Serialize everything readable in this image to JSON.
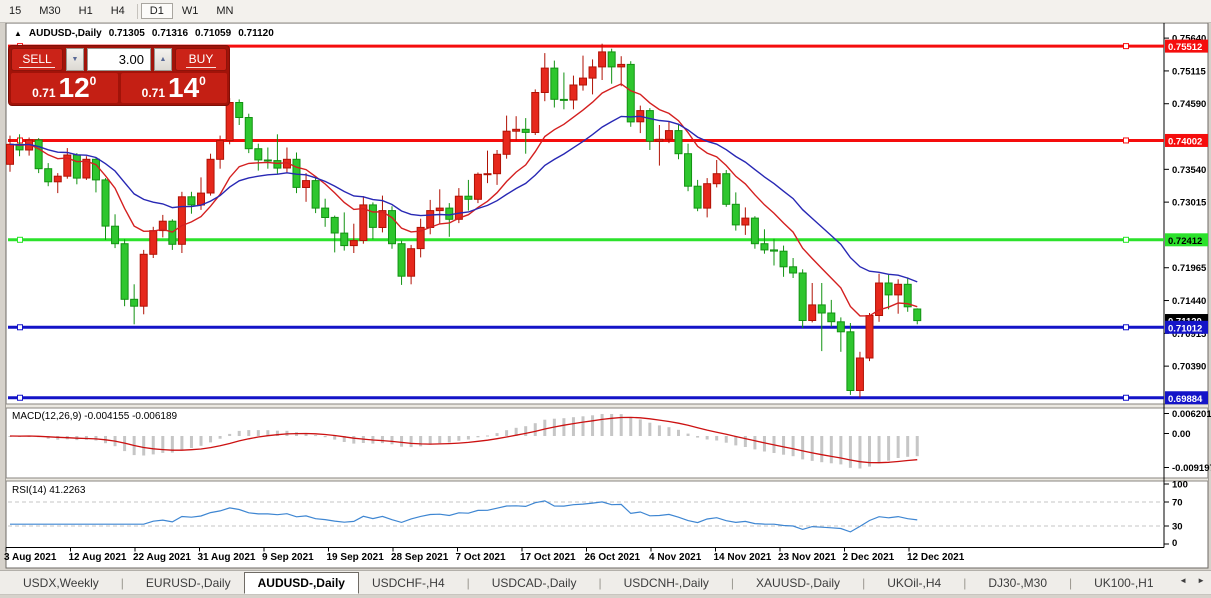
{
  "toolbar": {
    "items": [
      "15",
      "M30",
      "H1",
      "H4",
      "D1",
      "W1",
      "MN"
    ],
    "active": "D1"
  },
  "chart_header": {
    "marker": "▲",
    "symbol": "AUDUSD-,Daily",
    "open": "0.71305",
    "high": "0.71316",
    "low": "0.71059",
    "close": "0.71120"
  },
  "trade_panel": {
    "sell_label": "SELL",
    "buy_label": "BUY",
    "volume": "3.00",
    "decrement_icon": "▼",
    "increment_icon": "▲",
    "sell_price": {
      "prefix": "0.71",
      "big": "12",
      "pips": "0"
    },
    "buy_price": {
      "prefix": "0.71",
      "big": "14",
      "pips": "0"
    },
    "colors": {
      "backdrop": "#a11309",
      "button": "#cb2318"
    }
  },
  "current_price": {
    "label": "0.71120",
    "bg": "#000000",
    "text_color": "#ffffff"
  },
  "date_axis": {
    "labels": [
      "3 Aug 2021",
      "12 Aug 2021",
      "22 Aug 2021",
      "31 Aug 2021",
      "9 Sep 2021",
      "19 Sep 2021",
      "28 Sep 2021",
      "7 Oct 2021",
      "17 Oct 2021",
      "26 Oct 2021",
      "4 Nov 2021",
      "14 Nov 2021",
      "23 Nov 2021",
      "2 Dec 2021",
      "12 Dec 2021"
    ]
  },
  "tabs": {
    "items": [
      "USDX,Weekly",
      "EURUSD-,Daily",
      "AUDUSD-,Daily",
      "USDCHF-,H4",
      "USDCAD-,Daily",
      "USDCNH-,Daily",
      "XAUUSD-,Daily",
      "UKOil-,H4",
      "DJ30-,M30",
      "UK100-,H1"
    ],
    "active_index": 2,
    "scroll_left_icon": "◄",
    "scroll_right_icon": "►"
  },
  "chart_data": [
    {
      "type": "candlestick",
      "title": "AUDUSD-,Daily",
      "grid": false,
      "ylim": [
        0.698,
        0.7585
      ],
      "y_ticks": [
        "0.75640",
        "0.75115",
        "0.74590",
        "0.73540",
        "0.73015",
        "0.71965",
        "0.71440",
        "0.70915",
        "0.70390"
      ],
      "bull_color": "#e6281c",
      "bull_stroke": "#b01205",
      "bear_color": "#2ec62e",
      "bear_stroke": "#129212",
      "overlays": [
        {
          "name": "ma-fast",
          "period": 10,
          "color": "#d42020"
        },
        {
          "name": "ma-slow",
          "period": 21,
          "color": "#2828b4"
        }
      ],
      "levels": [
        {
          "price": 0.75512,
          "label": "0.75512",
          "color": "#f50d0d",
          "text_color": "#ffffff"
        },
        {
          "price": 0.74002,
          "label": "0.74002",
          "color": "#f50d0d",
          "text_color": "#ffffff"
        },
        {
          "price": 0.72412,
          "label": "0.72412",
          "color": "#2be22b",
          "text_color": "#000000"
        },
        {
          "price": 0.71012,
          "label": "0.71012",
          "color": "#1414c8",
          "text_color": "#ffffff"
        },
        {
          "price": 0.69884,
          "label": "0.69884",
          "color": "#1414c8",
          "text_color": "#ffffff"
        }
      ],
      "x": [
        "2021-08-03",
        "2021-08-04",
        "2021-08-05",
        "2021-08-06",
        "2021-08-09",
        "2021-08-10",
        "2021-08-11",
        "2021-08-12",
        "2021-08-13",
        "2021-08-16",
        "2021-08-17",
        "2021-08-18",
        "2021-08-19",
        "2021-08-20",
        "2021-08-23",
        "2021-08-24",
        "2021-08-25",
        "2021-08-26",
        "2021-08-27",
        "2021-08-30",
        "2021-08-31",
        "2021-09-01",
        "2021-09-02",
        "2021-09-03",
        "2021-09-06",
        "2021-09-07",
        "2021-09-08",
        "2021-09-09",
        "2021-09-10",
        "2021-09-13",
        "2021-09-14",
        "2021-09-15",
        "2021-09-16",
        "2021-09-17",
        "2021-09-20",
        "2021-09-21",
        "2021-09-22",
        "2021-09-23",
        "2021-09-24",
        "2021-09-27",
        "2021-09-28",
        "2021-09-29",
        "2021-09-30",
        "2021-10-01",
        "2021-10-04",
        "2021-10-05",
        "2021-10-06",
        "2021-10-07",
        "2021-10-08",
        "2021-10-11",
        "2021-10-12",
        "2021-10-13",
        "2021-10-14",
        "2021-10-15",
        "2021-10-18",
        "2021-10-19",
        "2021-10-20",
        "2021-10-21",
        "2021-10-22",
        "2021-10-25",
        "2021-10-26",
        "2021-10-27",
        "2021-10-28",
        "2021-10-29",
        "2021-11-01",
        "2021-11-02",
        "2021-11-03",
        "2021-11-04",
        "2021-11-05",
        "2021-11-08",
        "2021-11-09",
        "2021-11-10",
        "2021-11-11",
        "2021-11-12",
        "2021-11-15",
        "2021-11-16",
        "2021-11-17",
        "2021-11-18",
        "2021-11-19",
        "2021-11-22",
        "2021-11-23",
        "2021-11-24",
        "2021-11-25",
        "2021-11-26",
        "2021-11-29",
        "2021-11-30",
        "2021-12-01",
        "2021-12-02",
        "2021-12-03",
        "2021-12-06",
        "2021-12-07",
        "2021-12-08",
        "2021-12-09",
        "2021-12-10",
        "2021-12-13",
        "2021-12-14"
      ],
      "ohlc": [
        [
          0.7362,
          0.7408,
          0.735,
          0.7394
        ],
        [
          0.7394,
          0.741,
          0.7375,
          0.7385
        ],
        [
          0.7385,
          0.7405,
          0.7376,
          0.7401
        ],
        [
          0.7401,
          0.7404,
          0.7348,
          0.7355
        ],
        [
          0.7355,
          0.7364,
          0.7327,
          0.7334
        ],
        [
          0.7334,
          0.7348,
          0.7316,
          0.7343
        ],
        [
          0.7343,
          0.7388,
          0.7339,
          0.7377
        ],
        [
          0.7377,
          0.738,
          0.733,
          0.734
        ],
        [
          0.734,
          0.7375,
          0.7337,
          0.737
        ],
        [
          0.737,
          0.7372,
          0.7317,
          0.7337
        ],
        [
          0.7337,
          0.734,
          0.7241,
          0.7263
        ],
        [
          0.7263,
          0.7282,
          0.7228,
          0.7235
        ],
        [
          0.7235,
          0.7242,
          0.7135,
          0.7146
        ],
        [
          0.7146,
          0.717,
          0.7106,
          0.7135
        ],
        [
          0.7135,
          0.7225,
          0.7122,
          0.7218
        ],
        [
          0.7218,
          0.7262,
          0.7212,
          0.7256
        ],
        [
          0.7256,
          0.7281,
          0.7245,
          0.7271
        ],
        [
          0.7271,
          0.7274,
          0.7225,
          0.7234
        ],
        [
          0.7234,
          0.7318,
          0.722,
          0.731
        ],
        [
          0.731,
          0.7318,
          0.7283,
          0.7297
        ],
        [
          0.7297,
          0.7341,
          0.7289,
          0.7316
        ],
        [
          0.7316,
          0.7379,
          0.7312,
          0.737
        ],
        [
          0.737,
          0.7408,
          0.7355,
          0.74
        ],
        [
          0.74,
          0.7468,
          0.7394,
          0.7461
        ],
        [
          0.7461,
          0.7466,
          0.7425,
          0.7437
        ],
        [
          0.7437,
          0.7443,
          0.738,
          0.7387
        ],
        [
          0.7387,
          0.7395,
          0.7352,
          0.7369
        ],
        [
          0.7369,
          0.7389,
          0.7355,
          0.7368
        ],
        [
          0.7368,
          0.741,
          0.7346,
          0.7356
        ],
        [
          0.7356,
          0.7389,
          0.7348,
          0.737
        ],
        [
          0.737,
          0.7381,
          0.7316,
          0.7325
        ],
        [
          0.7325,
          0.7348,
          0.7302,
          0.7336
        ],
        [
          0.7336,
          0.7343,
          0.7284,
          0.7292
        ],
        [
          0.7292,
          0.7307,
          0.7262,
          0.7277
        ],
        [
          0.7277,
          0.728,
          0.7221,
          0.7252
        ],
        [
          0.7252,
          0.7285,
          0.7224,
          0.7232
        ],
        [
          0.7232,
          0.7267,
          0.722,
          0.724
        ],
        [
          0.724,
          0.7311,
          0.7235,
          0.7297
        ],
        [
          0.7297,
          0.7301,
          0.7242,
          0.7261
        ],
        [
          0.7261,
          0.7312,
          0.7253,
          0.7288
        ],
        [
          0.7288,
          0.7295,
          0.7227,
          0.7235
        ],
        [
          0.7235,
          0.724,
          0.7169,
          0.7183
        ],
        [
          0.7183,
          0.7233,
          0.717,
          0.7227
        ],
        [
          0.7227,
          0.7275,
          0.7213,
          0.7261
        ],
        [
          0.7261,
          0.7305,
          0.725,
          0.7288
        ],
        [
          0.7288,
          0.7322,
          0.7266,
          0.7292
        ],
        [
          0.7292,
          0.73,
          0.7246,
          0.7274
        ],
        [
          0.7274,
          0.7324,
          0.7268,
          0.7311
        ],
        [
          0.7311,
          0.7337,
          0.7288,
          0.7306
        ],
        [
          0.7306,
          0.7349,
          0.73,
          0.7346
        ],
        [
          0.7346,
          0.7384,
          0.7332,
          0.7347
        ],
        [
          0.7347,
          0.7385,
          0.7329,
          0.7378
        ],
        [
          0.7378,
          0.744,
          0.7371,
          0.7415
        ],
        [
          0.7415,
          0.7439,
          0.74,
          0.7418
        ],
        [
          0.7418,
          0.7436,
          0.7379,
          0.7413
        ],
        [
          0.7413,
          0.7482,
          0.7409,
          0.7477
        ],
        [
          0.7477,
          0.754,
          0.7463,
          0.7516
        ],
        [
          0.7516,
          0.7528,
          0.7453,
          0.7466
        ],
        [
          0.7466,
          0.7509,
          0.745,
          0.7465
        ],
        [
          0.7465,
          0.7504,
          0.745,
          0.7489
        ],
        [
          0.7489,
          0.7536,
          0.748,
          0.75
        ],
        [
          0.75,
          0.753,
          0.7474,
          0.7518
        ],
        [
          0.7518,
          0.7555,
          0.7497,
          0.7542
        ],
        [
          0.7542,
          0.7547,
          0.7491,
          0.7518
        ],
        [
          0.7518,
          0.7535,
          0.7487,
          0.7522
        ],
        [
          0.7522,
          0.7527,
          0.7422,
          0.743
        ],
        [
          0.743,
          0.7456,
          0.7412,
          0.7448
        ],
        [
          0.7448,
          0.7452,
          0.7385,
          0.7399
        ],
        [
          0.7399,
          0.7425,
          0.736,
          0.7402
        ],
        [
          0.7402,
          0.7431,
          0.7396,
          0.7416
        ],
        [
          0.7416,
          0.7427,
          0.737,
          0.7379
        ],
        [
          0.7379,
          0.7395,
          0.7319,
          0.7327
        ],
        [
          0.7327,
          0.7337,
          0.7287,
          0.7292
        ],
        [
          0.7292,
          0.734,
          0.7277,
          0.7331
        ],
        [
          0.7331,
          0.7369,
          0.7325,
          0.7347
        ],
        [
          0.7347,
          0.7353,
          0.7294,
          0.7298
        ],
        [
          0.7298,
          0.7317,
          0.7256,
          0.7265
        ],
        [
          0.7265,
          0.7293,
          0.7249,
          0.7276
        ],
        [
          0.7276,
          0.7279,
          0.7227,
          0.7235
        ],
        [
          0.7235,
          0.7258,
          0.7219,
          0.7225
        ],
        [
          0.7225,
          0.7243,
          0.72,
          0.7223
        ],
        [
          0.7223,
          0.7232,
          0.7182,
          0.7198
        ],
        [
          0.7198,
          0.7212,
          0.718,
          0.7188
        ],
        [
          0.7188,
          0.7194,
          0.71,
          0.7112
        ],
        [
          0.7112,
          0.7172,
          0.7109,
          0.7137
        ],
        [
          0.7137,
          0.7172,
          0.7063,
          0.7124
        ],
        [
          0.7124,
          0.7145,
          0.7102,
          0.711
        ],
        [
          0.711,
          0.7117,
          0.7062,
          0.7094
        ],
        [
          0.7094,
          0.7108,
          0.6993,
          0.7
        ],
        [
          0.7,
          0.7062,
          0.6989,
          0.7052
        ],
        [
          0.7052,
          0.7124,
          0.7047,
          0.712
        ],
        [
          0.712,
          0.7187,
          0.711,
          0.7172
        ],
        [
          0.7172,
          0.7185,
          0.713,
          0.7153
        ],
        [
          0.7153,
          0.7178,
          0.7123,
          0.717
        ],
        [
          0.717,
          0.7181,
          0.7126,
          0.7134
        ],
        [
          0.71305,
          0.71316,
          0.71059,
          0.7112
        ]
      ]
    },
    {
      "type": "bar",
      "name": "MACD",
      "title": "MACD(12,26,9)",
      "values": [
        "-0.004155",
        "-0.006189"
      ],
      "params": {
        "fast": 12,
        "slow": 26,
        "signal": 9
      },
      "histogram_color": "#c6c6c6",
      "signal_color": "#cc1111",
      "y_ticks": [
        "0.006201",
        "0.00",
        "-0.009197"
      ]
    },
    {
      "type": "line",
      "name": "RSI",
      "title": "RSI(14)",
      "period": 14,
      "value": "41.2263",
      "levels": [
        70,
        30
      ],
      "line_color": "#3e86d2",
      "level_color": "#c4c4c4",
      "y_ticks": [
        "100",
        "70",
        "30",
        "0"
      ],
      "ylim": [
        0,
        100
      ]
    }
  ]
}
